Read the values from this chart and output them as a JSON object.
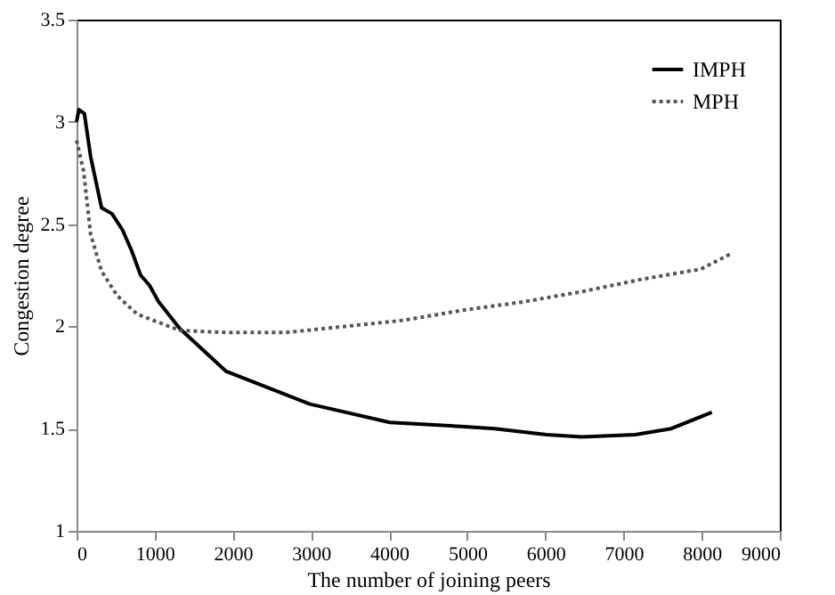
{
  "chart_data": {
    "type": "line",
    "xlabel": "The number of joining peers",
    "ylabel": "Congestion degree",
    "xlim": [
      0,
      9000
    ],
    "xticks": [
      0,
      1000,
      2000,
      3000,
      4000,
      5000,
      6000,
      7000,
      8000,
      9000
    ],
    "ylim": [
      1,
      3.5
    ],
    "yticks": [
      1,
      1.5,
      2,
      2.5,
      3,
      3.5
    ],
    "grid": false,
    "legend": "top right",
    "marker": "none",
    "series": [
      {
        "name": "IMPH",
        "color": "#000000",
        "line_style": "solid",
        "x": [
          0,
          30,
          100,
          180,
          320,
          455,
          590,
          705,
          820,
          935,
          1050,
          1320,
          1915,
          2985,
          4010,
          4960,
          5350,
          6015,
          6470,
          7150,
          7610,
          8130
        ],
        "values": [
          3.0,
          3.06,
          3.04,
          2.83,
          2.58,
          2.55,
          2.47,
          2.37,
          2.25,
          2.2,
          2.12,
          1.99,
          1.78,
          1.62,
          1.53,
          1.51,
          1.5,
          1.47,
          1.46,
          1.47,
          1.5,
          1.58
        ]
      },
      {
        "name": "MPH",
        "color": "#555555",
        "line_style": "dotted",
        "x": [
          0,
          90,
          180,
          320,
          520,
          775,
          1320,
          1915,
          2680,
          3440,
          4190,
          4960,
          5720,
          6470,
          7230,
          7990,
          8400
        ],
        "values": [
          2.91,
          2.76,
          2.45,
          2.27,
          2.15,
          2.06,
          1.98,
          1.97,
          1.97,
          2.0,
          2.03,
          2.08,
          2.12,
          2.17,
          2.23,
          2.28,
          2.36
        ]
      }
    ]
  }
}
